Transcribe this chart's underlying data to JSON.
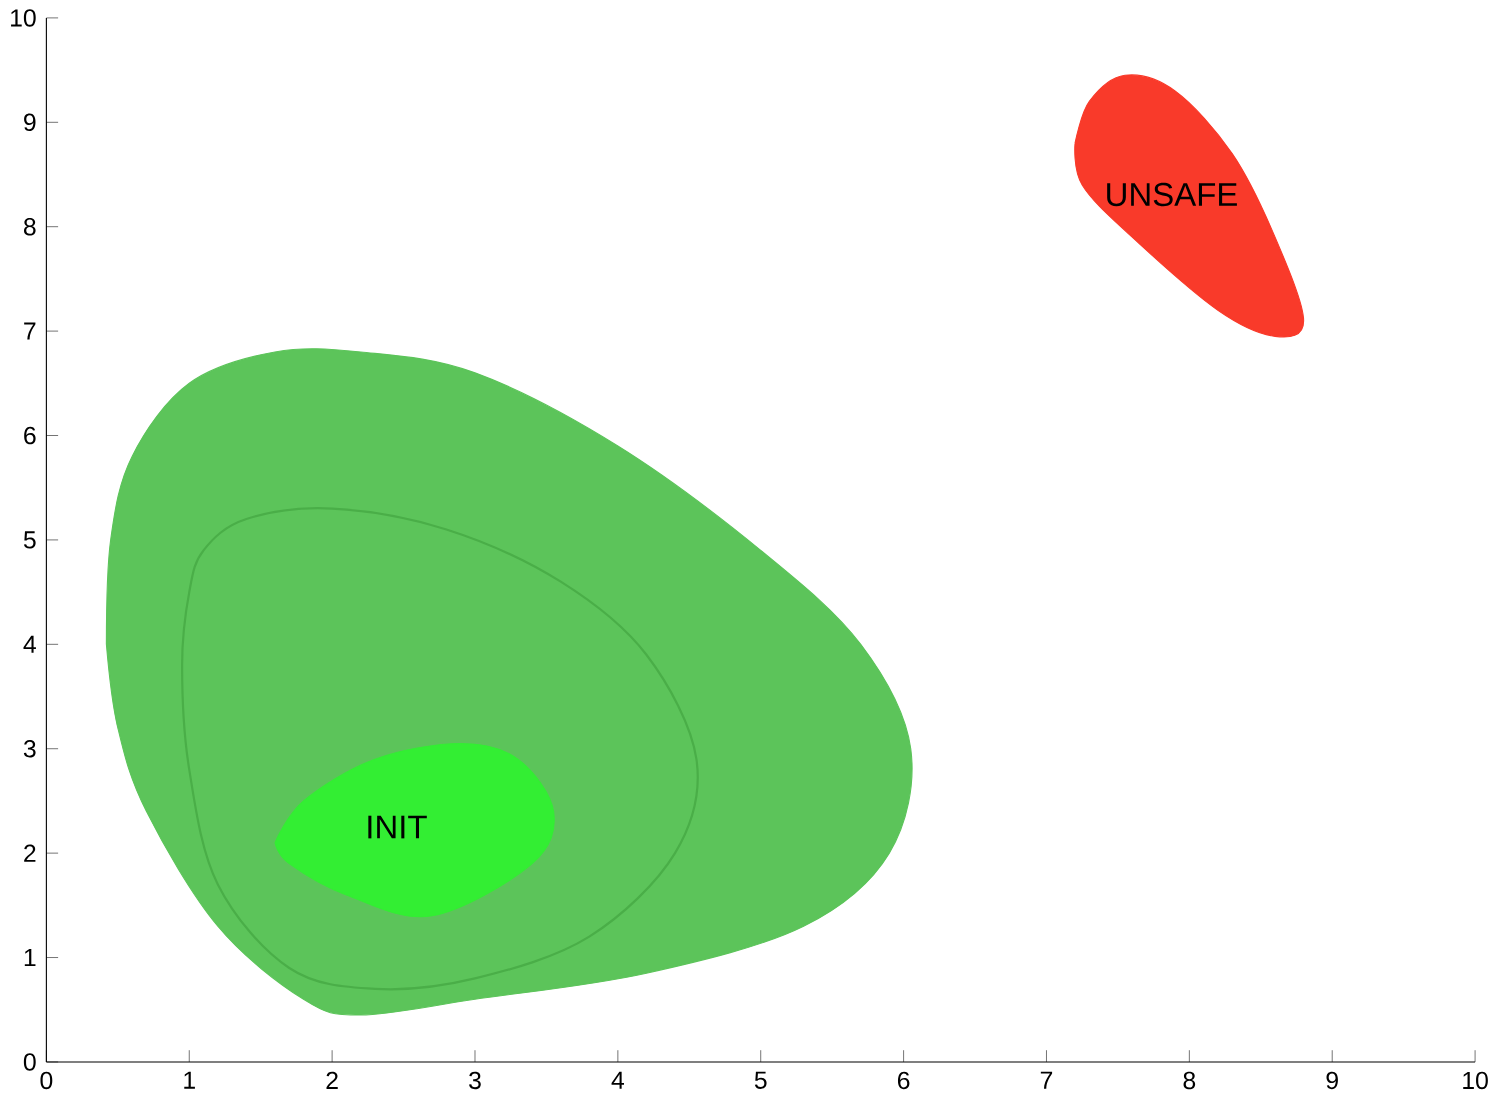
{
  "chart_data": {
    "type": "area",
    "xlim": [
      0,
      10
    ],
    "ylim": [
      0,
      10
    ],
    "xticks": [
      0,
      1,
      2,
      3,
      4,
      5,
      6,
      7,
      8,
      9,
      10
    ],
    "yticks": [
      0,
      1,
      2,
      3,
      4,
      5,
      6,
      7,
      8,
      9,
      10
    ],
    "grid": false,
    "series": [
      {
        "color": "#5cc45a",
        "x": [
          0.42,
          0.45,
          0.6,
          1.0,
          1.6,
          2.2,
          3.0,
          4.0,
          5.0,
          5.7,
          6.05,
          5.9,
          5.3,
          4.2,
          3.0,
          2.2,
          1.8,
          1.2,
          0.7,
          0.5,
          0.42
        ],
        "values": [
          4.0,
          5.0,
          5.8,
          6.5,
          6.8,
          6.8,
          6.6,
          5.9,
          4.9,
          4.0,
          3.0,
          2.0,
          1.3,
          0.85,
          0.6,
          0.45,
          0.6,
          1.3,
          2.4,
          3.2,
          4.0
        ]
      },
      {
        "name": "INIT",
        "color": "#33ee33",
        "x": [
          1.6,
          1.8,
          2.3,
          2.9,
          3.3,
          3.55,
          3.4,
          2.7,
          2.1,
          1.7,
          1.6
        ],
        "values": [
          2.1,
          2.5,
          2.9,
          3.05,
          2.9,
          2.4,
          1.9,
          1.4,
          1.6,
          1.9,
          2.1
        ]
      },
      {
        "name": "UNSAFE",
        "color": "#f93a2a",
        "x": [
          7.2,
          7.3,
          7.55,
          7.9,
          8.3,
          8.6,
          8.8,
          8.6,
          8.2,
          7.6,
          7.25,
          7.2
        ],
        "values": [
          8.8,
          9.2,
          9.45,
          9.3,
          8.7,
          7.9,
          7.1,
          6.95,
          7.2,
          7.9,
          8.4,
          8.8
        ]
      }
    ]
  }
}
